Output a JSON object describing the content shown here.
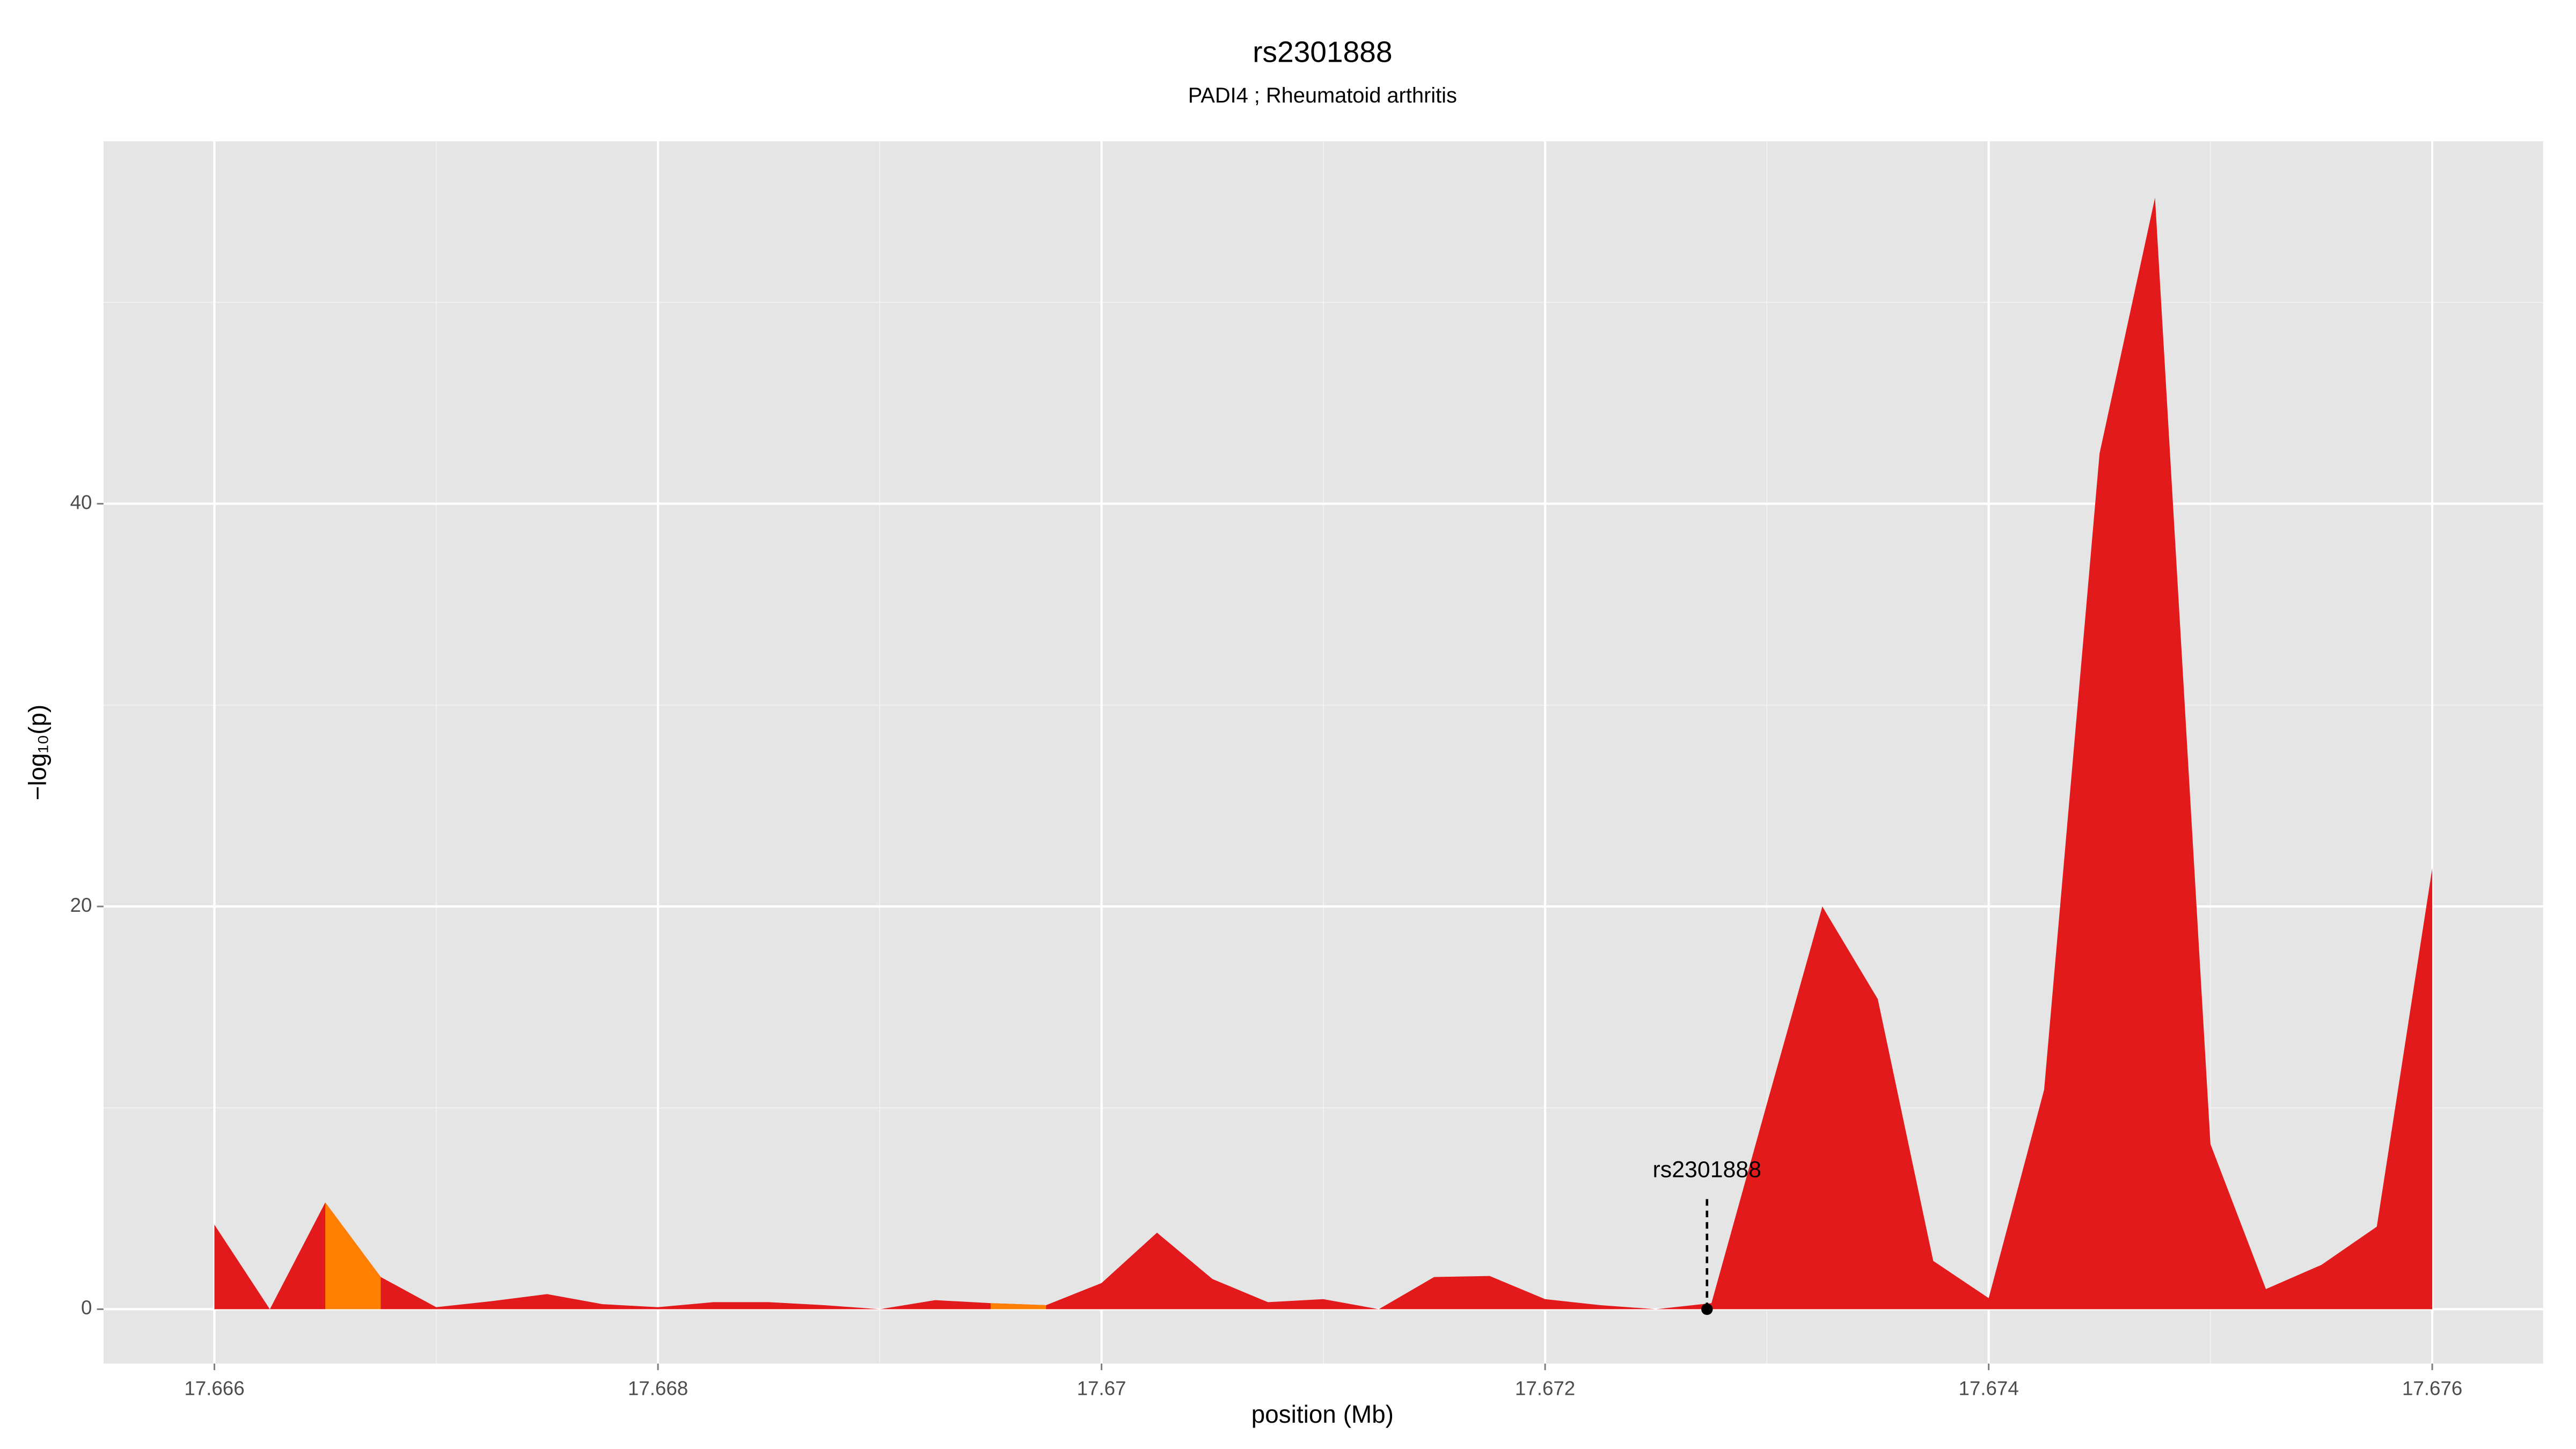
{
  "chart_data": {
    "type": "area",
    "title": "rs2301888",
    "subtitle": "PADI4 ; Rheumatoid arthritis",
    "x_label": "position (Mb)",
    "y_label": "−log₁₀(p)",
    "x": [
      17.666,
      17.66625,
      17.6665,
      17.66675,
      17.667,
      17.66725,
      17.6675,
      17.66775,
      17.668,
      17.66825,
      17.6685,
      17.66875,
      17.669,
      17.66925,
      17.6695,
      17.66975,
      17.67,
      17.67025,
      17.6705,
      17.67075,
      17.671,
      17.67125,
      17.6715,
      17.67175,
      17.672,
      17.67225,
      17.6725,
      17.67275,
      17.673,
      17.67325,
      17.6735,
      17.67375,
      17.674,
      17.67425,
      17.6745,
      17.67475,
      17.675,
      17.67525,
      17.6755,
      17.67575,
      17.676
    ],
    "series": [
      {
        "color": "#e31a1c",
        "values": [
          4.2,
          0,
          5.3,
          1.6,
          0.1,
          0.4,
          0.75,
          0.25,
          0.1,
          0.35,
          0.35,
          0.2,
          0,
          0.45,
          0.3,
          0.2,
          1.3,
          3.8,
          1.5,
          0.35,
          0.5,
          0,
          1.6,
          1.65,
          0.5,
          0.2,
          0,
          0.3,
          10.2,
          20,
          15.4,
          2.4,
          0.55,
          10.9,
          42.5,
          55.2,
          8.2,
          1.0,
          2.2,
          4.1,
          21.9
        ]
      },
      {
        "color": "#ff7f00",
        "values": [
          null,
          null,
          5.3,
          1.6,
          null,
          null,
          null,
          null,
          null,
          null,
          null,
          null,
          null,
          null,
          0.3,
          0.2,
          null,
          null,
          null,
          null,
          null,
          null,
          null,
          null,
          null,
          null,
          null,
          null,
          null,
          null,
          null,
          null,
          null,
          null,
          null,
          null,
          null,
          null,
          null,
          null,
          null
        ]
      }
    ],
    "annotation": {
      "text": "rs2301888",
      "x": 17.67273,
      "y": 0
    },
    "xlim": [
      17.6655,
      17.6765
    ],
    "ylim": [
      -2.7,
      58
    ],
    "xticks": [
      17.666,
      17.668,
      17.67,
      17.672,
      17.674,
      17.676
    ],
    "yticks": [
      0,
      20,
      40
    ],
    "grid": true
  }
}
